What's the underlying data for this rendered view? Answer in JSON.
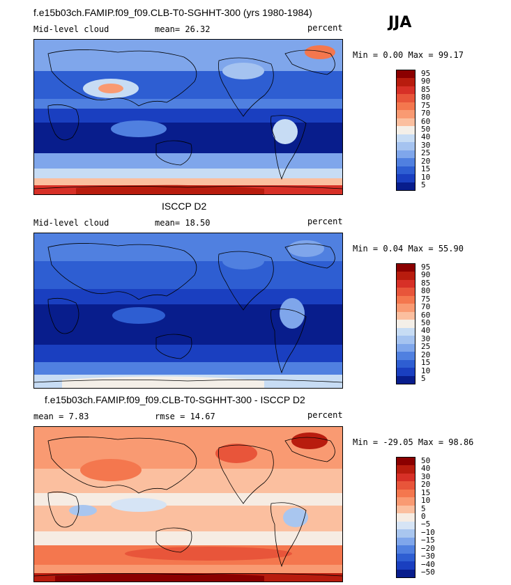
{
  "season": "JJA",
  "panels": [
    {
      "title": "f.e15b03ch.FAMIP.f09_f09.CLB-T0-SGHHT-300 (yrs 1980-1984)",
      "left_label": "Mid-level cloud",
      "middle_label": "mean=  26.32",
      "right_label": "percent",
      "minmax": "Min =   0.00 Max =  99.17",
      "colorbar_labels": [
        "95",
        "90",
        "85",
        "80",
        "75",
        "70",
        "60",
        "50",
        "40",
        "30",
        "25",
        "20",
        "15",
        "10",
        "5"
      ]
    },
    {
      "title": "ISCCP D2",
      "left_label": "Mid-level cloud",
      "middle_label": "mean=  18.50",
      "right_label": "percent",
      "minmax": "Min =   0.04 Max =  55.90",
      "colorbar_labels": [
        "95",
        "90",
        "85",
        "80",
        "75",
        "70",
        "60",
        "50",
        "40",
        "30",
        "25",
        "20",
        "15",
        "10",
        "5"
      ]
    },
    {
      "title": "f.e15b03ch.FAMIP.f09_f09.CLB-T0-SGHHT-300 - ISCCP D2",
      "left_label": "mean =   7.83",
      "middle_label": "rmse =  14.67",
      "right_label": "percent",
      "minmax": "Min = -29.05 Max =  98.86",
      "colorbar_labels": [
        "50",
        "40",
        "30",
        "20",
        "15",
        "10",
        "5",
        "0",
        "−5",
        "−10",
        "−15",
        "−20",
        "−30",
        "−40",
        "−50"
      ]
    }
  ],
  "colors": {
    "sequential": [
      "#8b0000",
      "#b81c0e",
      "#d73027",
      "#e8553a",
      "#f4774e",
      "#f99a72",
      "#fbbf9f",
      "#f4efe8",
      "#c7dcf4",
      "#a5c3f0",
      "#7fa6eb",
      "#5080e0",
      "#2e5ed2",
      "#1a3fc0",
      "#081d8c"
    ],
    "diverging": [
      "#8b0000",
      "#b81c0e",
      "#d73027",
      "#e8553a",
      "#f4774e",
      "#f99a72",
      "#fbbf9f",
      "#f6ece3",
      "#d6e4f5",
      "#a9c6ef",
      "#7fa6eb",
      "#5080e0",
      "#2e5ed2",
      "#1a3fc0",
      "#081d8c"
    ]
  },
  "chart_data": [
    {
      "type": "heatmap",
      "title": "f.e15b03ch.FAMIP.f09_f09.CLB-T0-SGHHT-300 (yrs 1980-1984)",
      "variable": "Mid-level cloud",
      "units": "percent",
      "mean": 26.32,
      "min": 0.0,
      "max": 99.17,
      "contour_levels": [
        5,
        10,
        15,
        20,
        25,
        30,
        40,
        50,
        60,
        70,
        75,
        80,
        85,
        90,
        95
      ]
    },
    {
      "type": "heatmap",
      "title": "ISCCP D2",
      "variable": "Mid-level cloud",
      "units": "percent",
      "mean": 18.5,
      "min": 0.04,
      "max": 55.9,
      "contour_levels": [
        5,
        10,
        15,
        20,
        25,
        30,
        40,
        50,
        60,
        70,
        75,
        80,
        85,
        90,
        95
      ]
    },
    {
      "type": "heatmap",
      "title": "f.e15b03ch.FAMIP.f09_f09.CLB-T0-SGHHT-300 - ISCCP D2",
      "units": "percent",
      "mean": 7.83,
      "rmse": 14.67,
      "min": -29.05,
      "max": 98.86,
      "contour_levels": [
        -50,
        -40,
        -30,
        -20,
        -15,
        -10,
        -5,
        0,
        5,
        10,
        15,
        20,
        30,
        40,
        50
      ]
    }
  ]
}
